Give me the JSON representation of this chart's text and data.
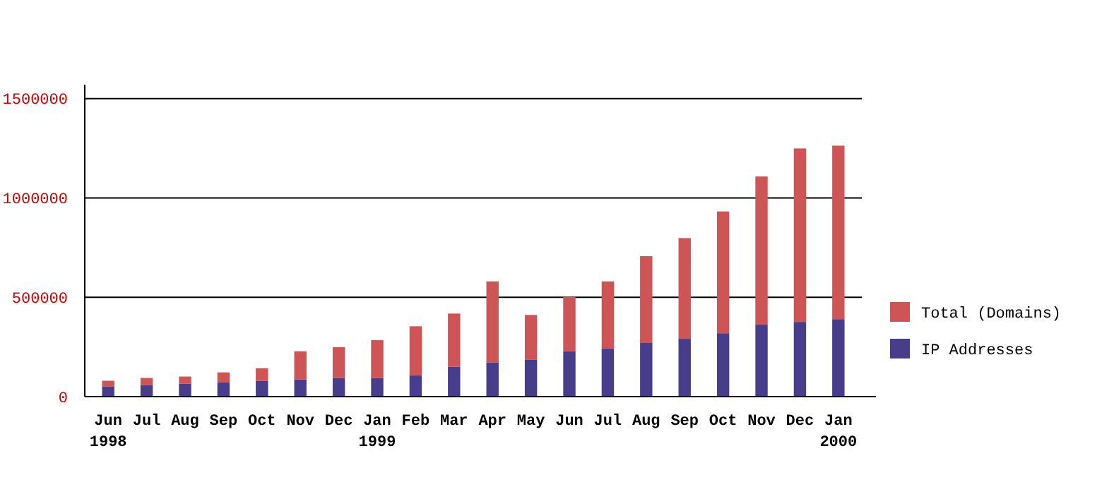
{
  "chart_data": {
    "type": "bar",
    "stacked": true,
    "categories": [
      "Jun\n1998",
      "Jul",
      "Aug",
      "Sep",
      "Oct",
      "Nov",
      "Dec",
      "Jan\n1999",
      "Feb",
      "Mar",
      "Apr",
      "May",
      "Jun",
      "Jul",
      "Aug",
      "Sep",
      "Oct",
      "Nov",
      "Dec",
      "Jan\n2000"
    ],
    "series": [
      {
        "name": "IP Addresses",
        "color": "#483d8b",
        "values": [
          52000,
          59000,
          66000,
          73000,
          80000,
          87000,
          94000,
          94000,
          108000,
          150000,
          171000,
          185000,
          228000,
          242000,
          270000,
          291000,
          319000,
          362000,
          376000,
          390000
        ]
      },
      {
        "name": "Total (Domains)",
        "color": "#cd5555",
        "values": [
          28000,
          35000,
          35000,
          49000,
          63000,
          141000,
          155000,
          190000,
          246000,
          268000,
          409000,
          226000,
          274000,
          338000,
          437000,
          507000,
          613000,
          746000,
          873000,
          873000
        ]
      }
    ],
    "ylim": [
      0,
      1570000
    ],
    "yticks": [
      0,
      500000,
      1000000,
      1500000
    ],
    "grid": "y",
    "legend": "right"
  }
}
